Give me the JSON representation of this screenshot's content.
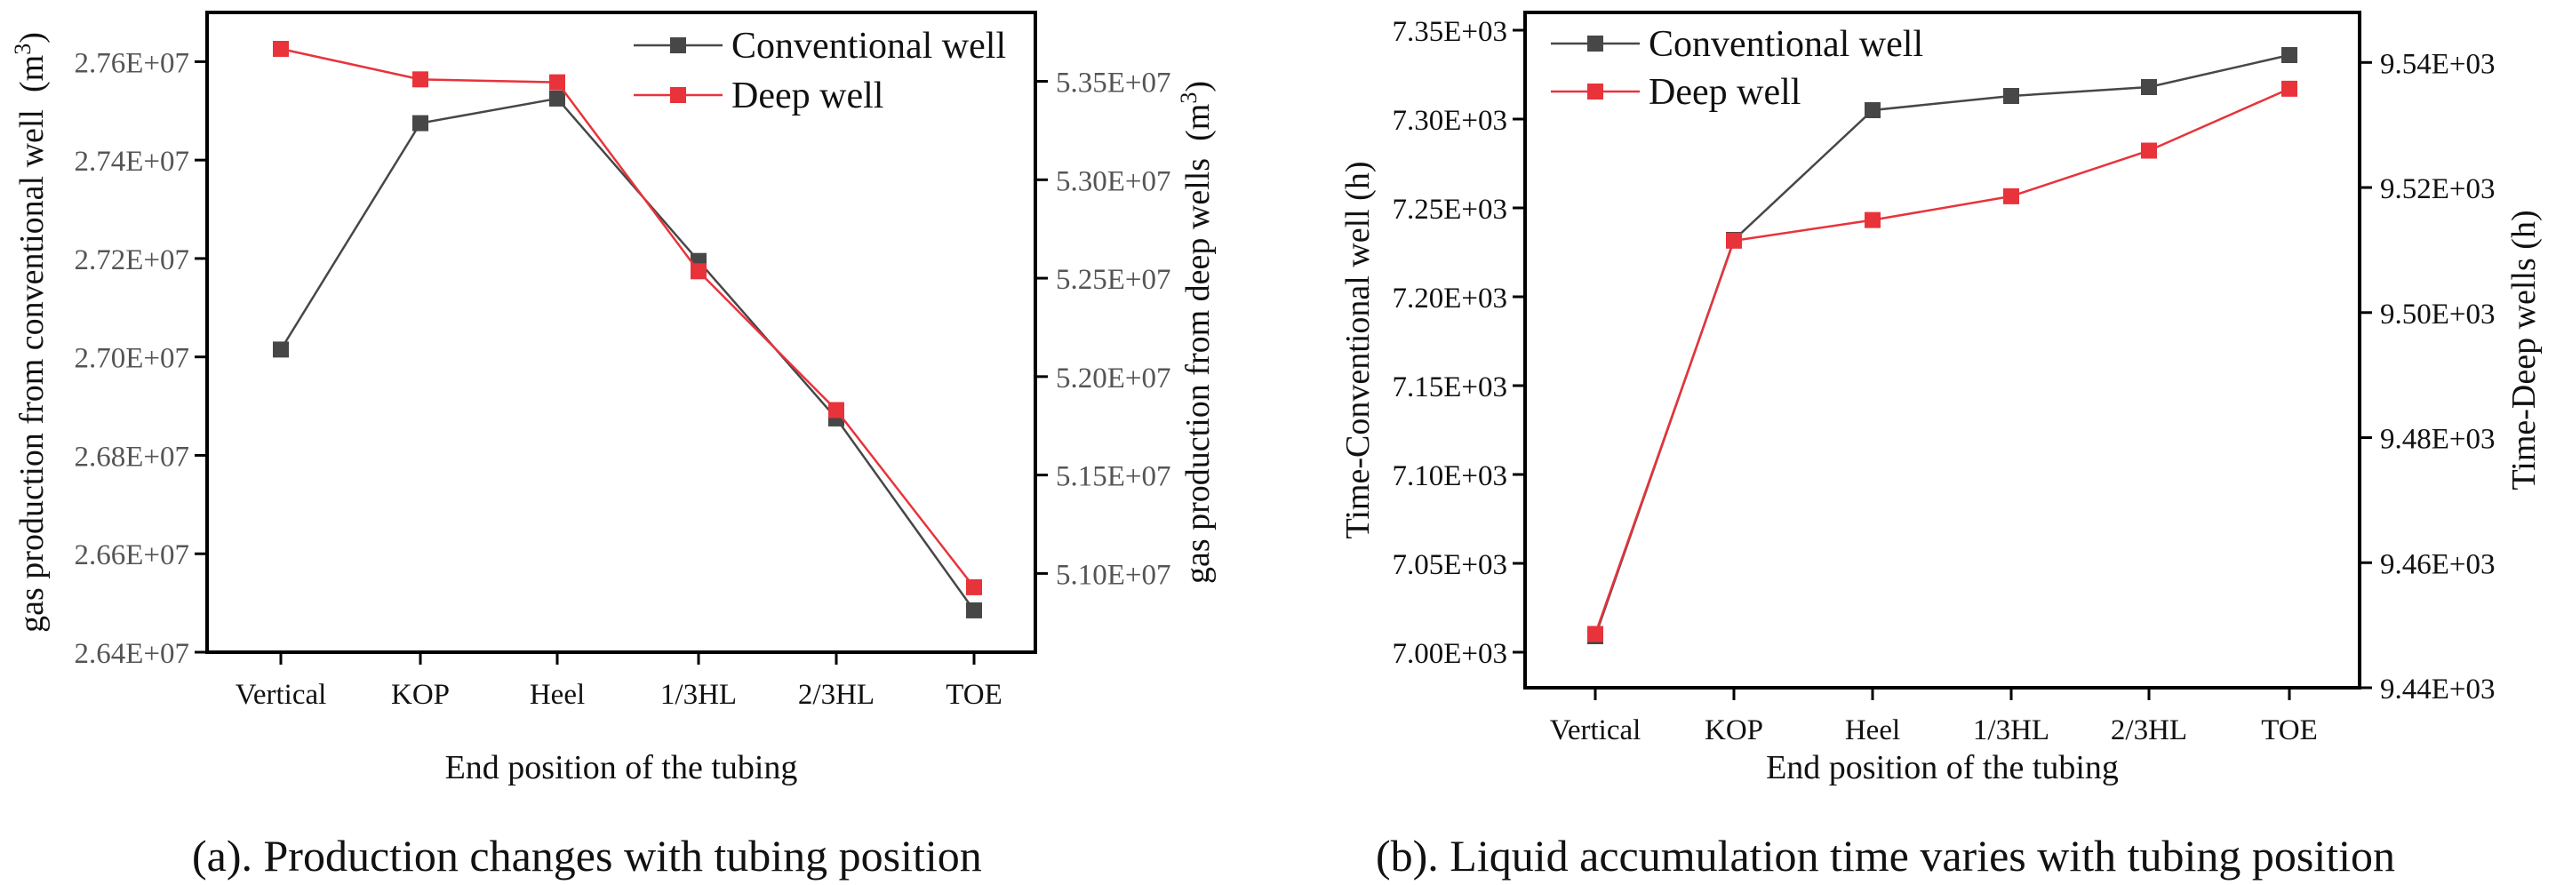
{
  "chart_data": [
    {
      "id": "a",
      "type": "line",
      "caption": "(a). Production changes with tubing position",
      "categories": [
        "Vertical",
        "KOP",
        "Heel",
        "1/3HL",
        "2/3HL",
        "TOE"
      ],
      "xlabel": "End position of the tubing",
      "left_axis": {
        "label": "gas production from conventional well",
        "unit_base": "m",
        "unit_exp": "3",
        "range": [
          26400000,
          27700000
        ],
        "ticks": [
          26400000,
          26600000,
          26800000,
          27000000,
          27200000,
          27400000,
          27600000
        ],
        "tick_labels": [
          "2.64E+07",
          "2.66E+07",
          "2.68E+07",
          "2.70E+07",
          "2.72E+07",
          "2.74E+07",
          "2.76E+07"
        ]
      },
      "right_axis": {
        "label": "gas production from deep wells",
        "unit_base": "m",
        "unit_exp": "3",
        "range": [
          50600000,
          53850000
        ],
        "ticks": [
          51000000,
          51500000,
          52000000,
          52500000,
          53000000,
          53500000
        ],
        "tick_labels": [
          "5.10E+07",
          "5.15E+07",
          "5.20E+07",
          "5.25E+07",
          "5.30E+07",
          "5.35E+07"
        ]
      },
      "series": [
        {
          "name": "Conventional well",
          "color": "#474747",
          "axis": "left",
          "values": [
            27015000,
            27475000,
            27525000,
            27195000,
            26875000,
            26485000
          ]
        },
        {
          "name": "Deep well",
          "color": "#e8333b",
          "axis": "right",
          "values": [
            53665000,
            53510000,
            53495000,
            52535000,
            51830000,
            50930000
          ]
        }
      ]
    },
    {
      "id": "b",
      "type": "line",
      "caption": "(b). Liquid accumulation time varies with tubing position",
      "categories": [
        "Vertical",
        "KOP",
        "Heel",
        "1/3HL",
        "2/3HL",
        "TOE"
      ],
      "xlabel": "End position of the tubing",
      "left_axis": {
        "label": "Time-Conventional well (h)",
        "range": [
          6980,
          7360
        ],
        "ticks": [
          7000,
          7050,
          7100,
          7150,
          7200,
          7250,
          7300,
          7350
        ],
        "tick_labels": [
          "7.00E+03",
          "7.05E+03",
          "7.10E+03",
          "7.15E+03",
          "7.20E+03",
          "7.25E+03",
          "7.30E+03",
          "7.35E+03"
        ]
      },
      "right_axis": {
        "label": "Time-Deep wells (h)",
        "range": [
          9440,
          9548
        ],
        "ticks": [
          9440,
          9460,
          9480,
          9500,
          9520,
          9540
        ],
        "tick_labels": [
          "9.44E+03",
          "9.46E+03",
          "9.48E+03",
          "9.50E+03",
          "9.52E+03",
          "9.54E+03"
        ]
      },
      "series": [
        {
          "name": "Conventional well",
          "color": "#474747",
          "axis": "left",
          "values": [
            7009,
            7232,
            7305,
            7313,
            7318,
            7336
          ]
        },
        {
          "name": "Deep well",
          "color": "#e8333b",
          "axis": "right",
          "values": [
            9448.6,
            9511.5,
            9514.8,
            9518.6,
            9525.9,
            9535.8
          ]
        }
      ]
    }
  ]
}
